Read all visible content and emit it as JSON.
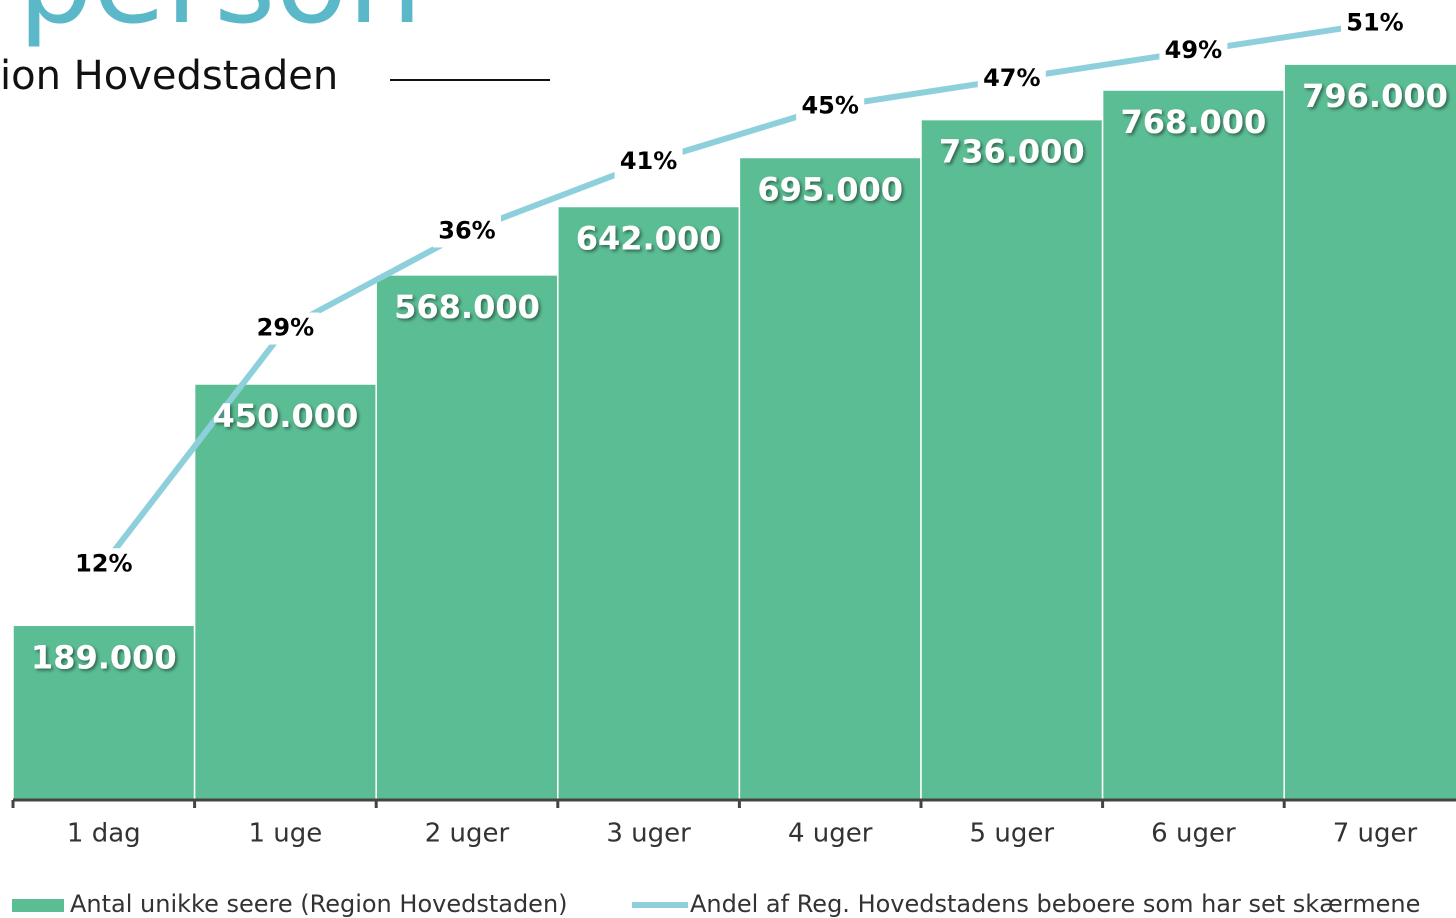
{
  "chart_data": {
    "type": "bar",
    "title": "person",
    "subtitle": "ion Hovedstaden",
    "categories": [
      "1 dag",
      "1 uge",
      "2 uger",
      "3 uger",
      "4 uger",
      "5 uger",
      "6 uger",
      "7 uger"
    ],
    "series": [
      {
        "name": "Antal unikke seere (Region Hovedstaden)",
        "type": "bar",
        "color": "#5bbd93",
        "values": [
          189000,
          450000,
          568000,
          642000,
          695000,
          736000,
          768000,
          796000
        ],
        "value_labels": [
          "189.000",
          "450.000",
          "568.000",
          "642.000",
          "695.000",
          "736.000",
          "768.000",
          "796.000"
        ]
      },
      {
        "name": "Andel af Reg. Hovedstadens beboere som har set skærmene",
        "type": "line",
        "axis": "y2",
        "color": "#8dd0dc",
        "values": [
          12,
          29,
          36,
          41,
          45,
          47,
          49,
          51
        ],
        "value_labels": [
          "12%",
          "29%",
          "36%",
          "41%",
          "45%",
          "47%",
          "49%",
          "51%"
        ]
      }
    ],
    "ylim": [
      0,
      900000
    ],
    "y2lim": [
      -5,
      55
    ]
  }
}
